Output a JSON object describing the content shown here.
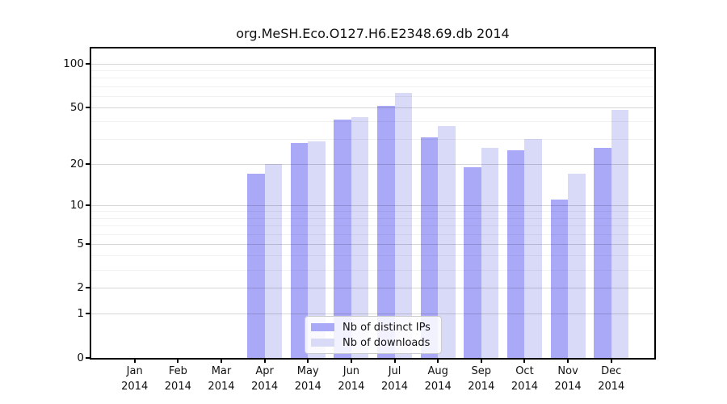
{
  "chart_data": {
    "type": "bar",
    "title": "org.MeSH.Eco.O127.H6.E2348.69.db 2014",
    "categories": [
      "Jan",
      "Feb",
      "Mar",
      "Apr",
      "May",
      "Jun",
      "Jul",
      "Aug",
      "Sep",
      "Oct",
      "Nov",
      "Dec"
    ],
    "category_year": "2014",
    "series": [
      {
        "name": "Nb of distinct IPs",
        "color": "#a9a9f8",
        "values": [
          0,
          0,
          0,
          17,
          28,
          41,
          51,
          31,
          19,
          25,
          11,
          26
        ]
      },
      {
        "name": "Nb of downloads",
        "color": "#d9d9f8",
        "values": [
          0,
          0,
          0,
          20,
          29,
          43,
          63,
          37,
          26,
          30,
          17,
          48
        ]
      }
    ],
    "y_ticks": [
      0,
      1,
      2,
      5,
      10,
      20,
      50,
      100
    ],
    "minor_gridlines": [
      3,
      4,
      6,
      7,
      8,
      9,
      30,
      40,
      60,
      70,
      80,
      90
    ],
    "yscale": "log1p",
    "ylim": [
      0,
      127
    ],
    "xlabel": "",
    "ylabel": "",
    "legend_position": "bottom-center",
    "grid": true
  },
  "colors": {
    "axis": "#000000",
    "text": "#111111",
    "major_grid": "#d9d9d9",
    "minor_grid": "#f0f0f0",
    "legend_border": "#cccccc"
  }
}
